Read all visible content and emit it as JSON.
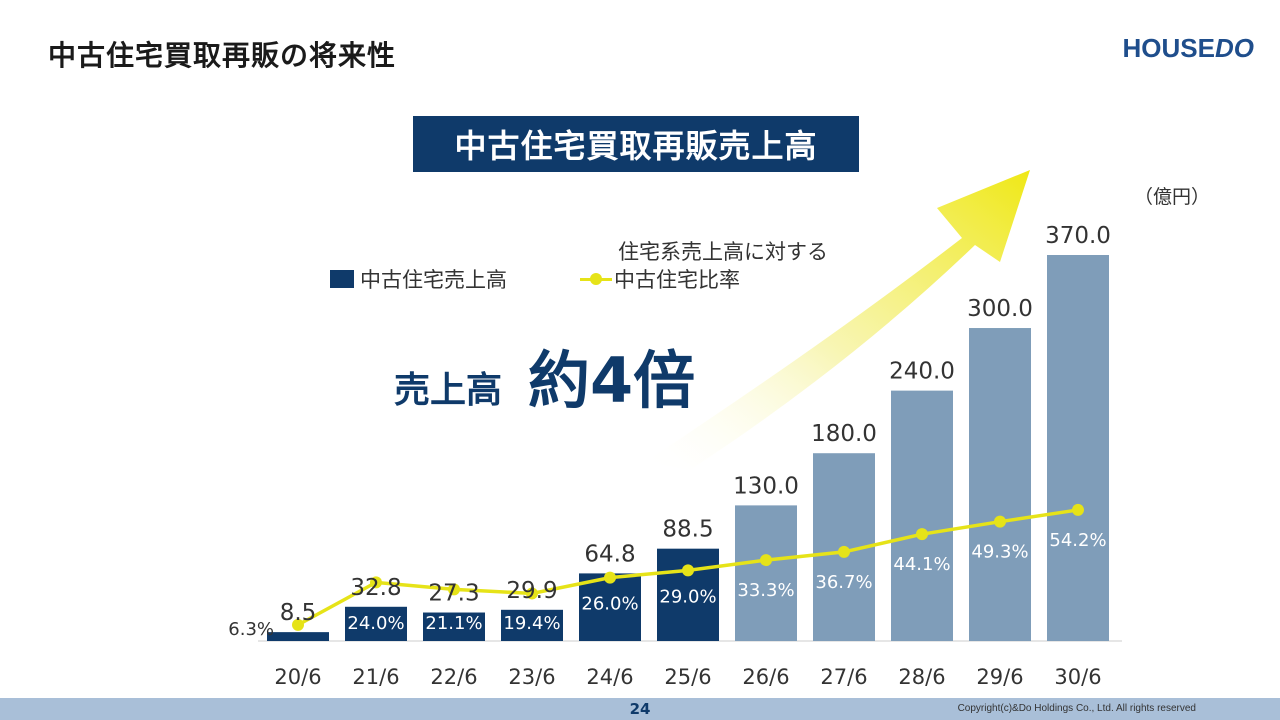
{
  "page": {
    "title": "中古住宅買取再販の将来性",
    "logo_house": "HOUSE",
    "logo_do": "DO",
    "page_number": "24",
    "copyright": "Copyright(c)&Do Holdings Co., Ltd. All rights reserved"
  },
  "banner": {
    "text": "中古住宅買取再販売上高"
  },
  "unit_label": "（億円）",
  "callout": {
    "label": "売上高",
    "value": "約4倍"
  },
  "legend": {
    "bar": "中古住宅売上高",
    "line_prefix": "住宅系売上高に対する",
    "line": "中古住宅比率"
  },
  "colors": {
    "actual_bar": "#0f3a6a",
    "forecast_bar": "#7f9db9",
    "ratio_line": "#e6e318",
    "footer": "#a9bfd8"
  },
  "chart_data": {
    "type": "bar",
    "categories": [
      "20/6",
      "21/6",
      "22/6",
      "23/6",
      "24/6",
      "25/6",
      "26/6",
      "27/6",
      "28/6",
      "29/6",
      "30/6"
    ],
    "series": [
      {
        "name": "中古住宅売上高",
        "values": [
          8.5,
          32.8,
          27.3,
          29.9,
          64.8,
          88.5,
          130.0,
          180.0,
          240.0,
          300.0,
          370.0
        ],
        "value_labels": [
          "8.5",
          "32.8",
          "27.3",
          "29.9",
          "64.8",
          "88.5",
          "130.0",
          "180.0",
          "240.0",
          "300.0",
          "370.0"
        ],
        "forecast_from_index": 6
      },
      {
        "name": "中古住宅比率",
        "type": "line",
        "values": [
          6.3,
          24.0,
          21.1,
          19.4,
          26.0,
          29.0,
          33.3,
          36.7,
          44.1,
          49.3,
          54.2
        ],
        "value_labels": [
          "6.3%",
          "24.0%",
          "21.1%",
          "19.4%",
          "26.0%",
          "29.0%",
          "33.3%",
          "36.7%",
          "44.1%",
          "49.3%",
          "54.2%"
        ]
      }
    ],
    "ylim": [
      0,
      370
    ],
    "grid": false,
    "legend_position": "top-left"
  }
}
